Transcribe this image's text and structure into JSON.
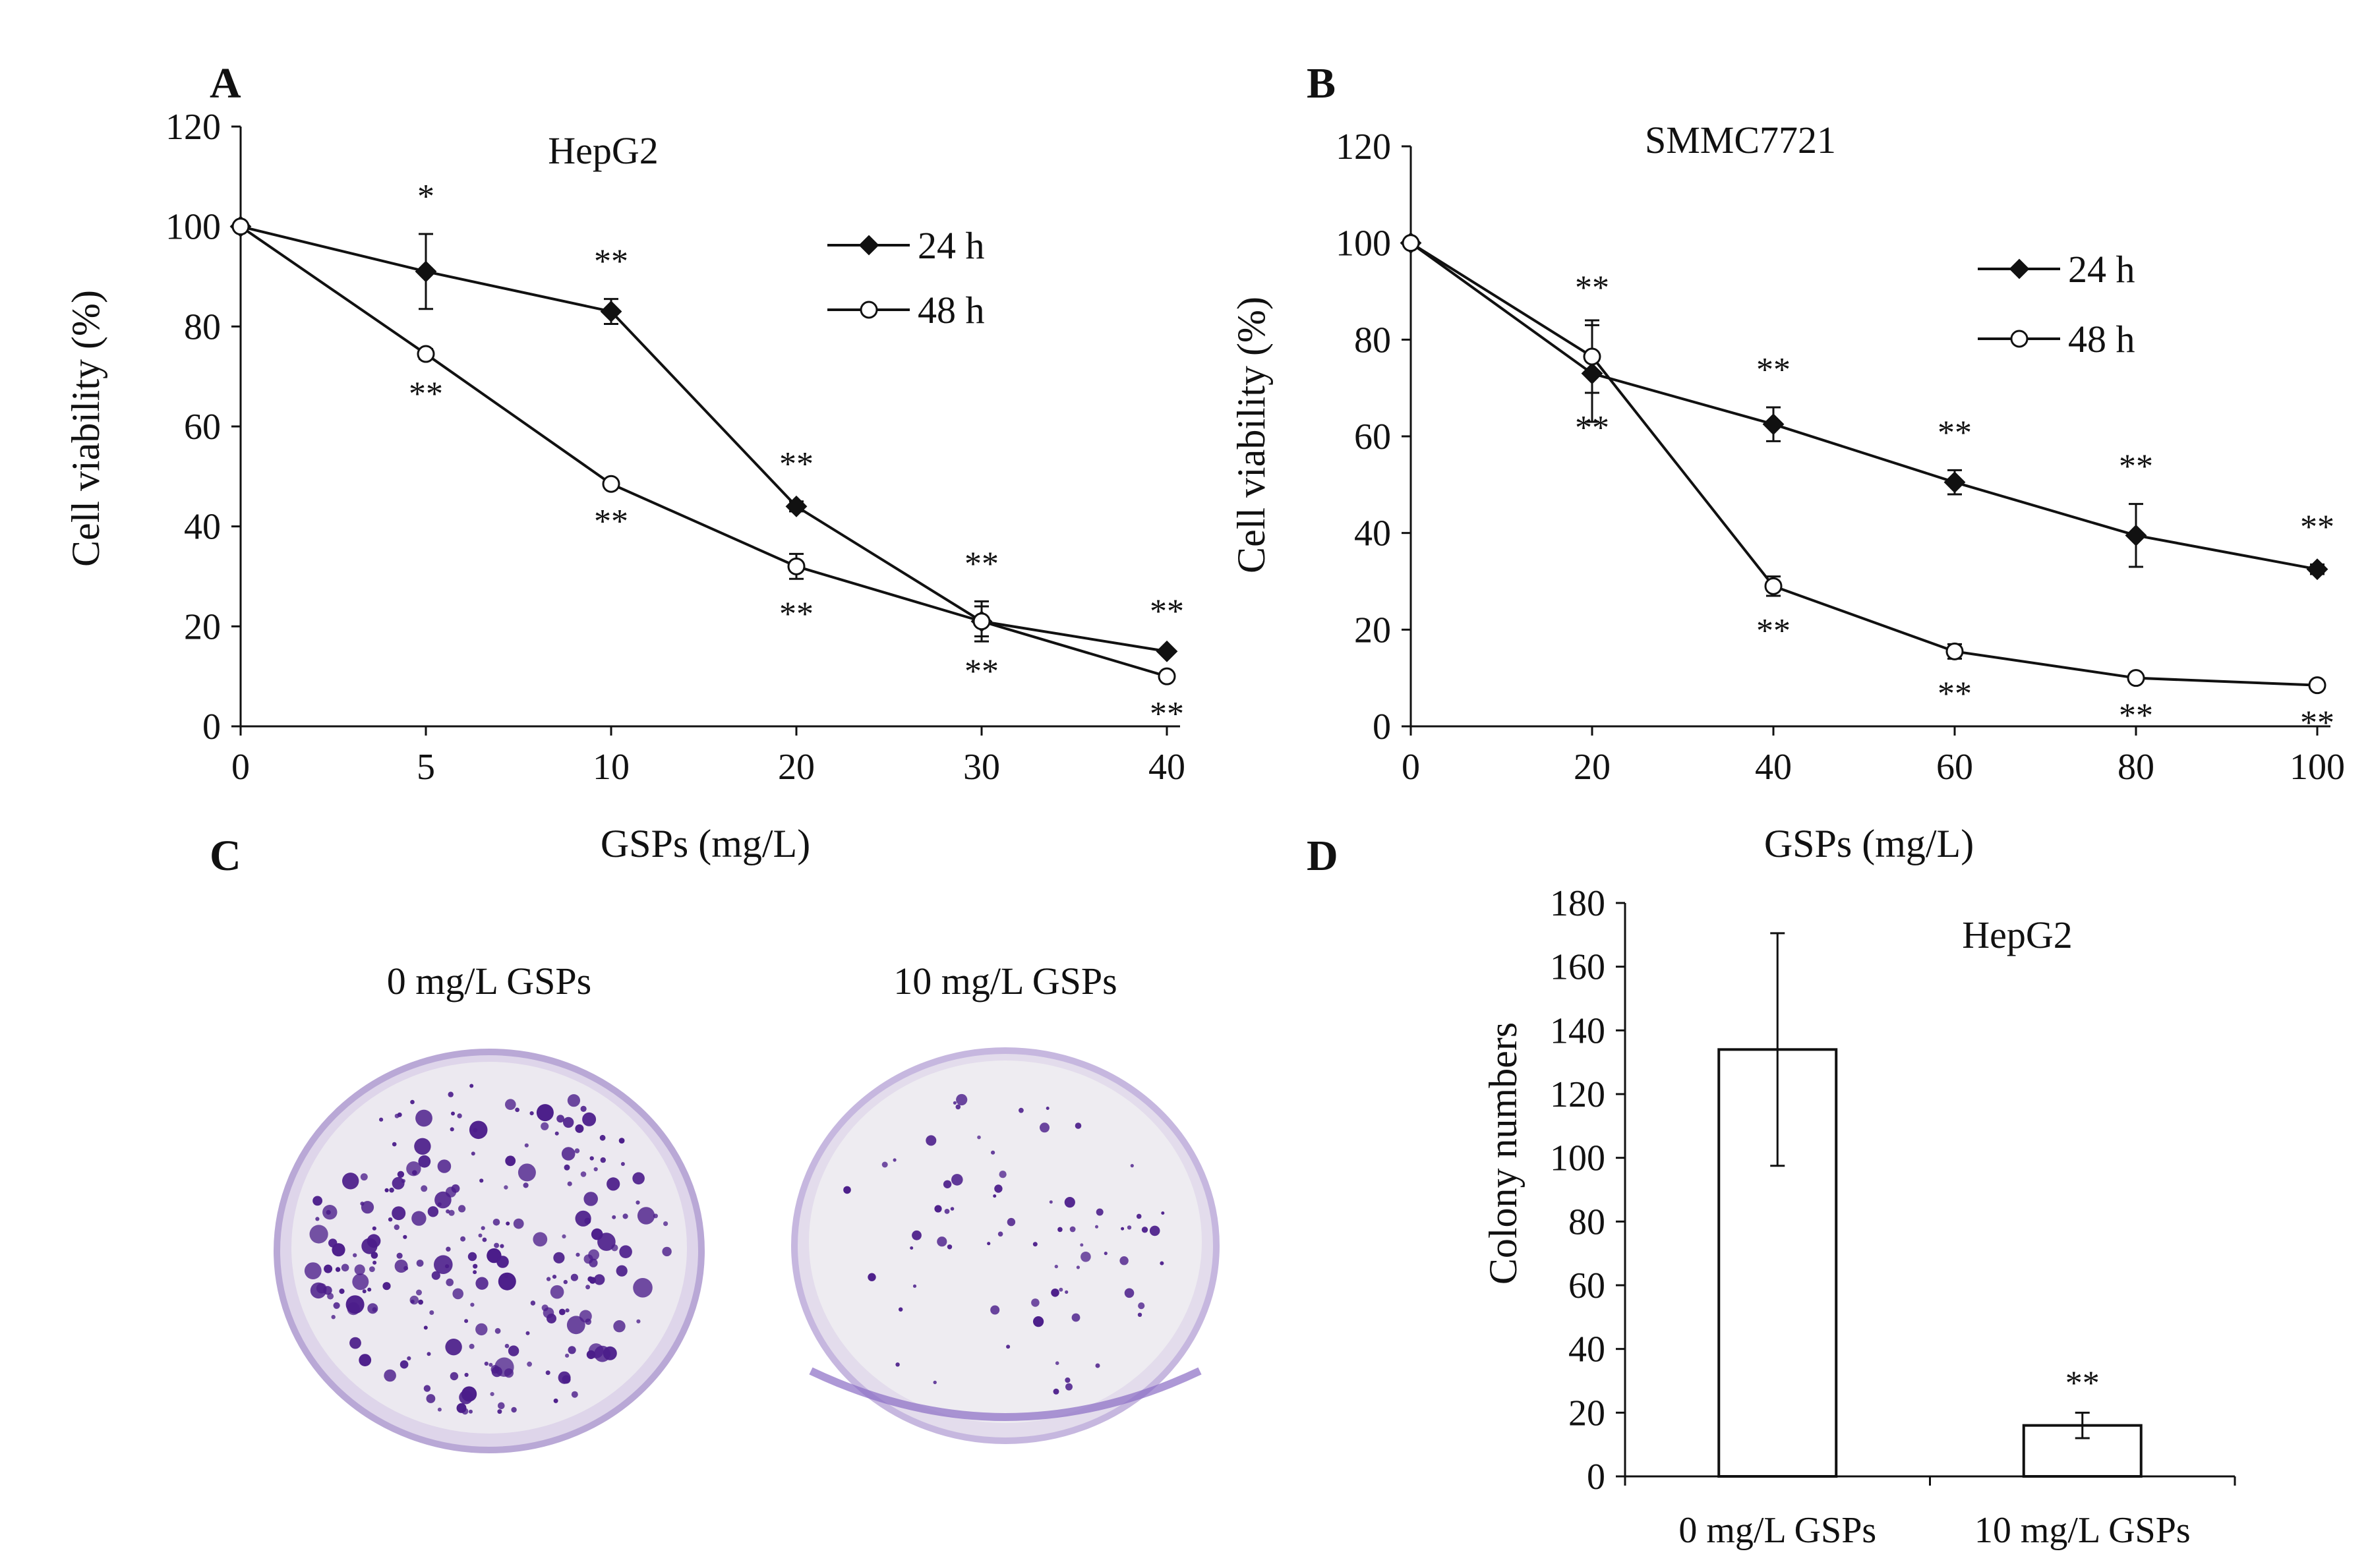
{
  "panels": {
    "A": "A",
    "B": "B",
    "C": "C",
    "D": "D"
  },
  "chart_data": [
    {
      "panel": "A",
      "type": "line",
      "title": "HepG2",
      "xlabel": "GSPs (mg/L)",
      "ylabel": "Cell viability (%)",
      "categories": [
        "0",
        "5",
        "10",
        "20",
        "30",
        "40"
      ],
      "ylim": [
        0,
        120
      ],
      "yticks": [
        0,
        20,
        40,
        60,
        80,
        100,
        120
      ],
      "legend_position": "top-right",
      "series": [
        {
          "name": "24 h",
          "marker": "filled-diamond",
          "values": [
            100,
            91,
            83,
            44,
            21,
            15
          ],
          "errors": [
            0,
            7.5,
            2.5,
            1,
            4,
            0.5
          ],
          "annotations": [
            "",
            "*",
            "**",
            "**",
            "**",
            "**"
          ]
        },
        {
          "name": "48 h",
          "marker": "open-circle",
          "values": [
            100,
            74.5,
            48.5,
            32,
            21,
            10
          ],
          "errors": [
            0,
            1,
            0.5,
            2.5,
            3,
            0.5
          ],
          "annotations": [
            "",
            "**",
            "**",
            "**",
            "**",
            "**"
          ]
        }
      ]
    },
    {
      "panel": "B",
      "type": "line",
      "title": "SMMC7721",
      "xlabel": "GSPs (mg/L)",
      "ylabel": "Cell viability (%)",
      "categories": [
        "0",
        "20",
        "40",
        "60",
        "80",
        "100"
      ],
      "ylim": [
        0,
        120
      ],
      "yticks": [
        0,
        20,
        40,
        60,
        80,
        100,
        120
      ],
      "legend_position": "top-right",
      "series": [
        {
          "name": "24 h",
          "marker": "filled-diamond",
          "values": [
            100,
            73,
            62.5,
            50.5,
            39.5,
            32.5
          ],
          "errors": [
            0,
            10,
            3.5,
            2.5,
            6.5,
            1
          ],
          "annotations": [
            "",
            "**",
            "**",
            "**",
            "**",
            "**"
          ]
        },
        {
          "name": "48 h",
          "marker": "open-circle",
          "values": [
            100,
            76.5,
            29,
            15.5,
            10,
            8.5
          ],
          "errors": [
            0,
            7.5,
            2,
            1.5,
            0.5,
            0.5
          ],
          "annotations": [
            "",
            "**",
            "**",
            "**",
            "**",
            "**"
          ]
        }
      ]
    },
    {
      "panel": "D",
      "type": "bar",
      "title": "HepG2",
      "xlabel": "",
      "ylabel": "Colony numbers",
      "categories": [
        "0 mg/L GSPs",
        "10 mg/L GSPs"
      ],
      "values": [
        134,
        16
      ],
      "errors": [
        36.5,
        4
      ],
      "annotations": [
        "",
        "**"
      ],
      "ylim": [
        0,
        180
      ],
      "yticks": [
        0,
        20,
        40,
        60,
        80,
        100,
        120,
        140,
        160,
        180
      ]
    }
  ],
  "panel_c": {
    "labels": [
      "0 mg/L GSPs",
      "10 mg/L GSPs"
    ],
    "colony_color": "#4b1d8a",
    "dish_color": "#ece9f0",
    "rim_color": "#b9a8d6"
  }
}
